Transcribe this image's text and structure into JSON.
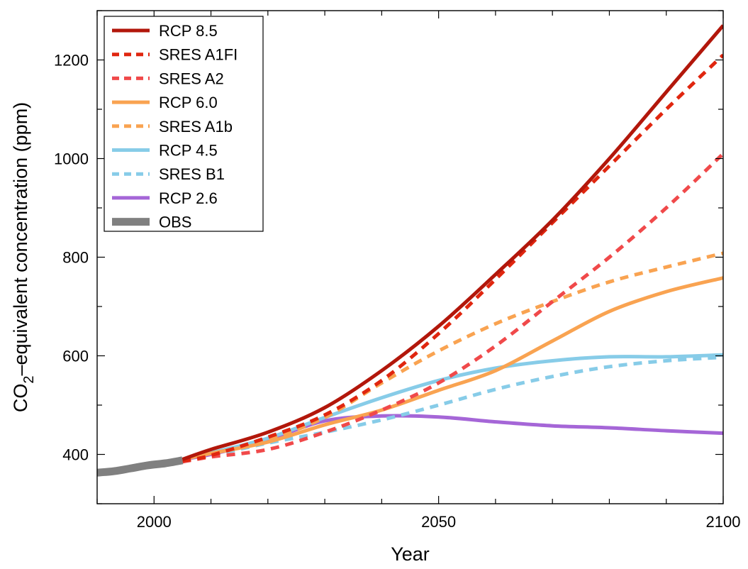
{
  "chart_data": {
    "type": "line",
    "xlabel": "Year",
    "ylabel": {
      "prefix": "CO",
      "subscript": "2",
      "suffix": "–equivalent concentration (ppm)"
    },
    "xlim": [
      1990,
      2100
    ],
    "ylim": [
      300,
      1300
    ],
    "xticks": [
      2000,
      2050,
      2100
    ],
    "yticks": [
      400,
      600,
      800,
      1000,
      1200
    ],
    "xminor_step": 10,
    "yminor_step": 100,
    "grid": false,
    "legend_position": "top-left",
    "series": [
      {
        "name": "RCP 8.5",
        "color": "#b2170b",
        "style": "solid",
        "x": [
          2005,
          2010,
          2020,
          2030,
          2040,
          2050,
          2060,
          2070,
          2080,
          2090,
          2100
        ],
        "y": [
          390,
          410,
          445,
          495,
          570,
          660,
          765,
          875,
          1000,
          1135,
          1270
        ]
      },
      {
        "name": "SRES A1FI",
        "color": "#e0260f",
        "style": "dashed",
        "x": [
          2005,
          2010,
          2020,
          2030,
          2040,
          2050,
          2060,
          2070,
          2080,
          2090,
          2100
        ],
        "y": [
          387,
          398,
          435,
          480,
          550,
          645,
          755,
          870,
          985,
          1100,
          1210
        ]
      },
      {
        "name": "SRES A2",
        "color": "#f0494a",
        "style": "dashed",
        "x": [
          2005,
          2010,
          2020,
          2030,
          2040,
          2050,
          2060,
          2070,
          2080,
          2090,
          2100
        ],
        "y": [
          385,
          395,
          410,
          445,
          490,
          545,
          620,
          710,
          800,
          900,
          1010
        ]
      },
      {
        "name": "RCP 6.0",
        "color": "#f9a351",
        "style": "solid",
        "x": [
          2005,
          2010,
          2020,
          2030,
          2040,
          2050,
          2060,
          2070,
          2080,
          2090,
          2100
        ],
        "y": [
          390,
          402,
          425,
          460,
          490,
          530,
          570,
          630,
          690,
          730,
          758
        ]
      },
      {
        "name": "SRES A1b",
        "color": "#f9a351",
        "style": "dashed",
        "x": [
          2005,
          2010,
          2020,
          2030,
          2040,
          2050,
          2060,
          2070,
          2080,
          2090,
          2100
        ],
        "y": [
          388,
          400,
          430,
          475,
          545,
          610,
          665,
          710,
          750,
          780,
          808
        ]
      },
      {
        "name": "RCP 4.5",
        "color": "#87cce8",
        "style": "solid",
        "x": [
          2005,
          2010,
          2020,
          2030,
          2040,
          2050,
          2060,
          2070,
          2080,
          2090,
          2100
        ],
        "y": [
          390,
          403,
          433,
          475,
          515,
          550,
          575,
          590,
          598,
          598,
          602
        ]
      },
      {
        "name": "SRES B1",
        "color": "#87cce8",
        "style": "dashed",
        "x": [
          2005,
          2010,
          2020,
          2030,
          2040,
          2050,
          2060,
          2070,
          2080,
          2090,
          2100
        ],
        "y": [
          388,
          398,
          423,
          445,
          470,
          500,
          532,
          558,
          578,
          590,
          597
        ]
      },
      {
        "name": "RCP 2.6",
        "color": "#a566d7",
        "style": "solid",
        "x": [
          2005,
          2010,
          2020,
          2030,
          2040,
          2050,
          2060,
          2070,
          2080,
          2090,
          2100
        ],
        "y": [
          390,
          400,
          430,
          468,
          478,
          476,
          466,
          458,
          454,
          448,
          443
        ]
      },
      {
        "name": "OBS",
        "color": "#808080",
        "style": "thick",
        "x": [
          1990,
          1993,
          1996,
          1999,
          2002,
          2005
        ],
        "y": [
          363,
          366,
          372,
          378,
          382,
          388
        ]
      }
    ]
  }
}
